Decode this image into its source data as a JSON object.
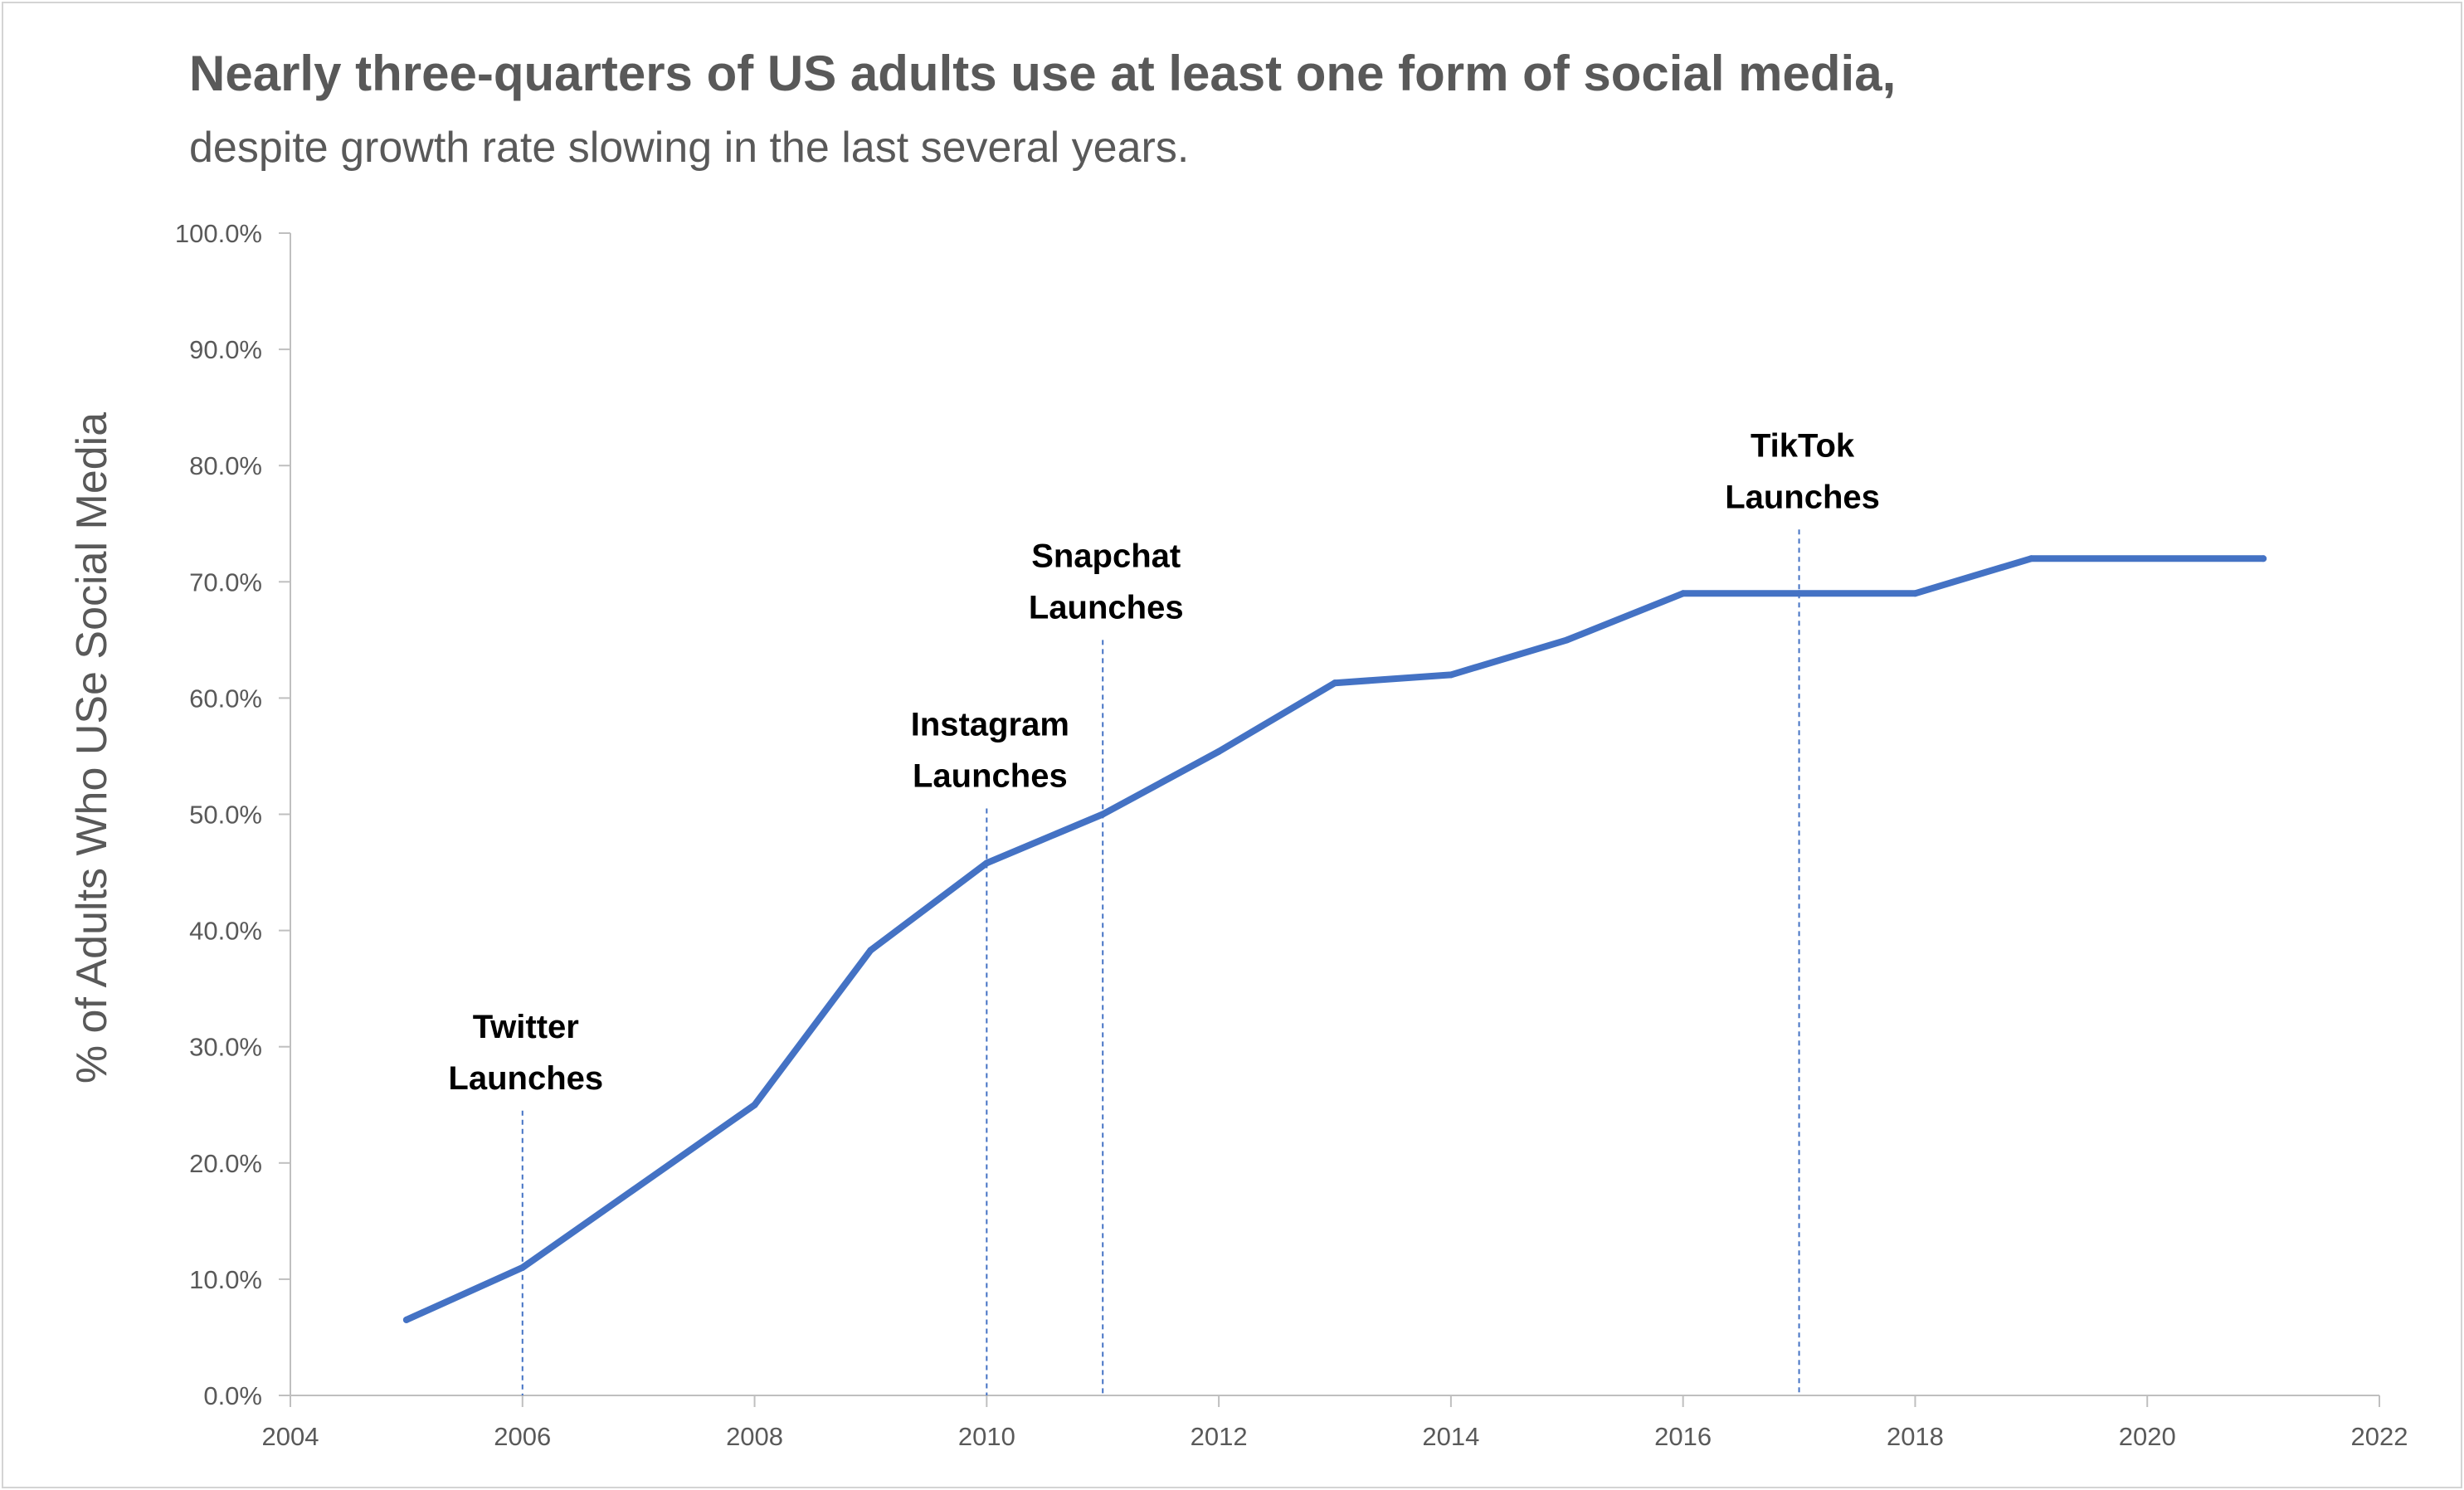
{
  "chart_data": {
    "type": "line",
    "title": "Nearly three-quarters of US adults use at least one form of social media,",
    "subtitle": "despite growth rate slowing in the last several years.",
    "xlabel": "",
    "ylabel": "% of Adults Who USe Social Media",
    "xlim": [
      2004,
      2022
    ],
    "ylim": [
      0,
      100
    ],
    "x_ticks": [
      "2004",
      "2006",
      "2008",
      "2010",
      "2012",
      "2014",
      "2016",
      "2018",
      "2020",
      "2022"
    ],
    "y_ticks": [
      "0.0%",
      "10.0%",
      "20.0%",
      "30.0%",
      "40.0%",
      "50.0%",
      "60.0%",
      "70.0%",
      "80.0%",
      "90.0%",
      "100.0%"
    ],
    "grid": false,
    "legend": "none",
    "series": [
      {
        "color": "#4472c4",
        "x": [
          2005,
          2006,
          2008,
          2009,
          2010,
          2011,
          2012,
          2013,
          2014,
          2015,
          2016,
          2017,
          2018,
          2019,
          2021
        ],
        "y": [
          6.5,
          11,
          25,
          38.3,
          45.8,
          50,
          55.4,
          61.3,
          62,
          65,
          69,
          69,
          69,
          72,
          72
        ]
      }
    ],
    "annotations": [
      {
        "x": 2006,
        "lines": [
          "Twitter",
          "Launches"
        ],
        "line_top_y": 24.5
      },
      {
        "x": 2010,
        "lines": [
          "Instagram",
          "Launches"
        ],
        "line_top_y": 50.5
      },
      {
        "x": 2011,
        "lines": [
          "Snapchat",
          "Launches"
        ],
        "line_top_y": 65
      },
      {
        "x": 2017,
        "lines": [
          "TikTok",
          "Launches"
        ],
        "line_top_y": 74.5
      }
    ]
  }
}
